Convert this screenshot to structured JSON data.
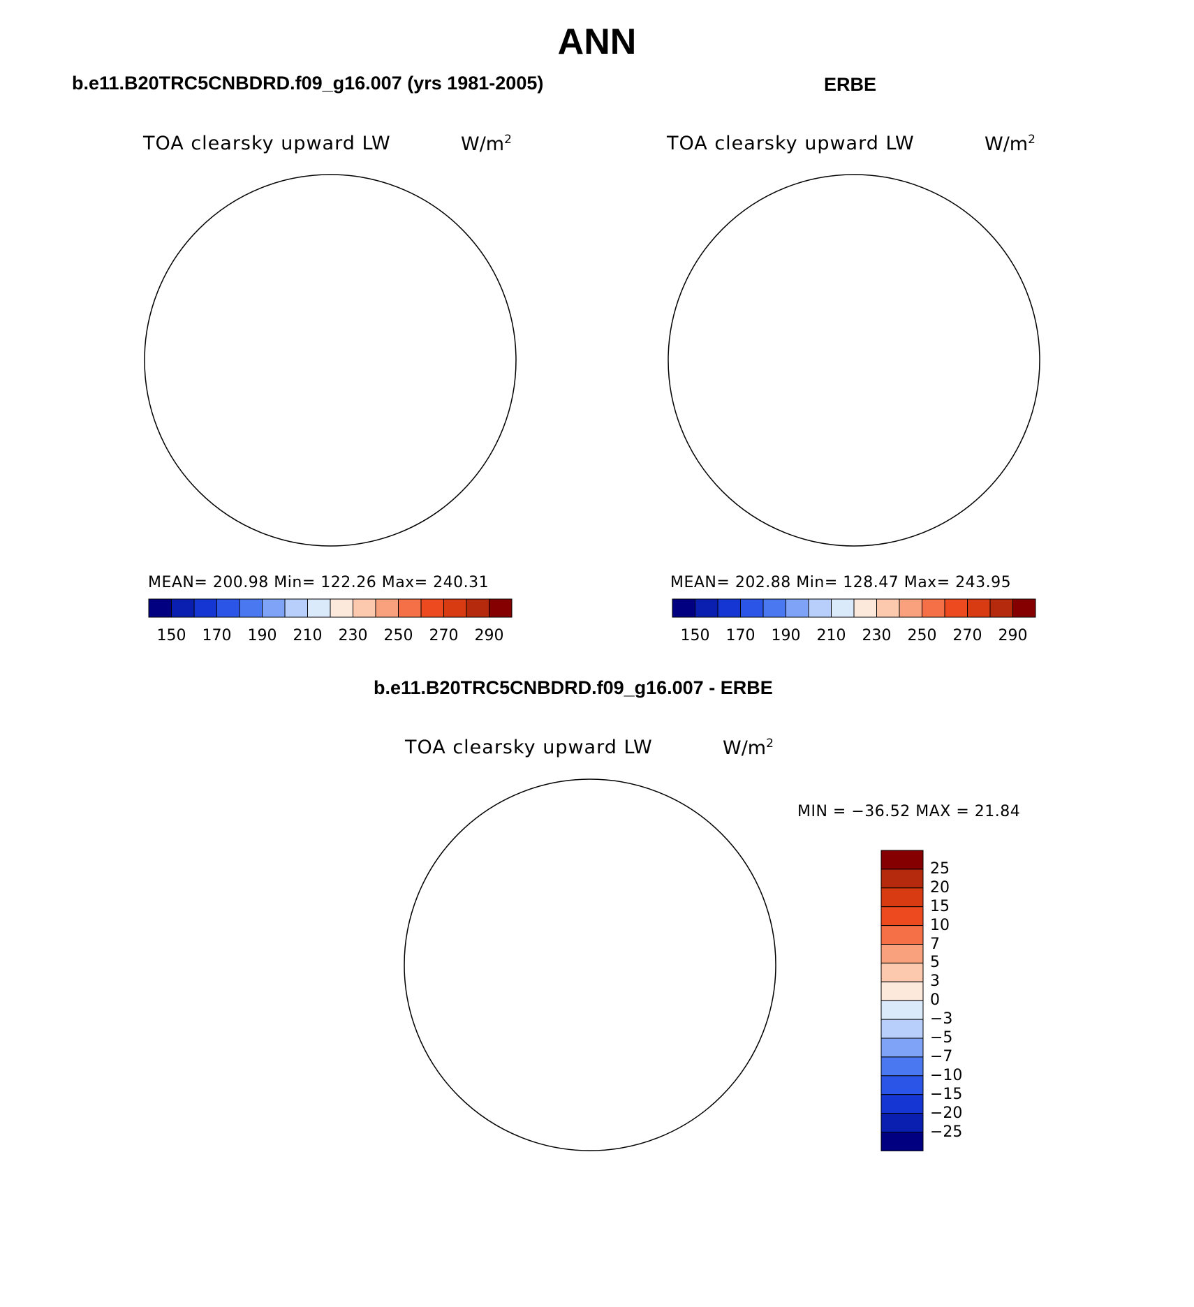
{
  "main_title": "ANN",
  "panels": [
    {
      "title": "b.e11.B20TRC5CNBDRD.f09_g16.007 (yrs 1981-2005)",
      "variable": "TOA clearsky upward LW",
      "unit_base": "W/m",
      "unit_exp": "2",
      "stats": "MEAN= 200.98   Min= 122.26   Max= 240.31",
      "colorbar_ticks": [
        "150",
        "170",
        "190",
        "210",
        "230",
        "250",
        "270",
        "290"
      ]
    },
    {
      "title": "ERBE",
      "variable": "TOA clearsky upward LW",
      "unit_base": "W/m",
      "unit_exp": "2",
      "stats": "MEAN= 202.88   Min= 128.47   Max= 243.95",
      "colorbar_ticks": [
        "150",
        "170",
        "190",
        "210",
        "230",
        "250",
        "270",
        "290"
      ]
    },
    {
      "title": "b.e11.B20TRC5CNBDRD.f09_g16.007 - ERBE",
      "variable": "TOA clearsky upward LW",
      "unit_base": "W/m",
      "unit_exp": "2",
      "stats": "MIN = −36.52 MAX =  21.84",
      "colorbar_ticks": [
        "25",
        "20",
        "15",
        "10",
        "7",
        "5",
        "3",
        "0",
        "−3",
        "−5",
        "−7",
        "−10",
        "−15",
        "−20",
        "−25"
      ]
    }
  ],
  "colors": {
    "abs_scale": [
      "#000080",
      "#0a1fb0",
      "#1636d4",
      "#2a55e6",
      "#4a78f0",
      "#7fa3f7",
      "#b7cffa",
      "#dbeafb",
      "#fde9dc",
      "#fcc9ae",
      "#f9a07c",
      "#f57046",
      "#ee4a1f",
      "#d83a12",
      "#b52a0c",
      "#850000"
    ],
    "diff_scale": [
      "#850000",
      "#b52a0c",
      "#d83a12",
      "#ee4a1f",
      "#f57046",
      "#f9a07c",
      "#fcc9ae",
      "#fde9dc",
      "#dbeafb",
      "#b7cffa",
      "#7fa3f7",
      "#4a78f0",
      "#2a55e6",
      "#1636d4",
      "#0a1fb0",
      "#000080"
    ]
  },
  "chart_data": [
    {
      "type": "heatmap",
      "projection": "south-polar-stereographic",
      "title": "b.e11.B20TRC5CNBDRD.f09_g16.007 (yrs 1981-2005)",
      "variable": "TOA clearsky upward LW",
      "units": "W/m2",
      "mean": 200.98,
      "min": 122.26,
      "max": 240.31,
      "contour_levels": [
        150,
        160,
        170,
        180,
        190,
        200,
        210,
        220,
        230,
        240,
        250,
        260,
        270,
        280,
        290
      ]
    },
    {
      "type": "heatmap",
      "projection": "south-polar-stereographic",
      "title": "ERBE",
      "variable": "TOA clearsky upward LW",
      "units": "W/m2",
      "mean": 202.88,
      "min": 128.47,
      "max": 243.95,
      "contour_levels": [
        150,
        160,
        170,
        180,
        190,
        200,
        210,
        220,
        230,
        240,
        250,
        260,
        270,
        280,
        290
      ]
    },
    {
      "type": "heatmap",
      "projection": "south-polar-stereographic",
      "title": "b.e11.B20TRC5CNBDRD.f09_g16.007 - ERBE",
      "variable": "TOA clearsky upward LW",
      "units": "W/m2",
      "min": -36.52,
      "max": 21.84,
      "contour_levels": [
        -25,
        -20,
        -15,
        -10,
        -7,
        -5,
        -3,
        0,
        3,
        5,
        7,
        10,
        15,
        20,
        25
      ]
    }
  ]
}
